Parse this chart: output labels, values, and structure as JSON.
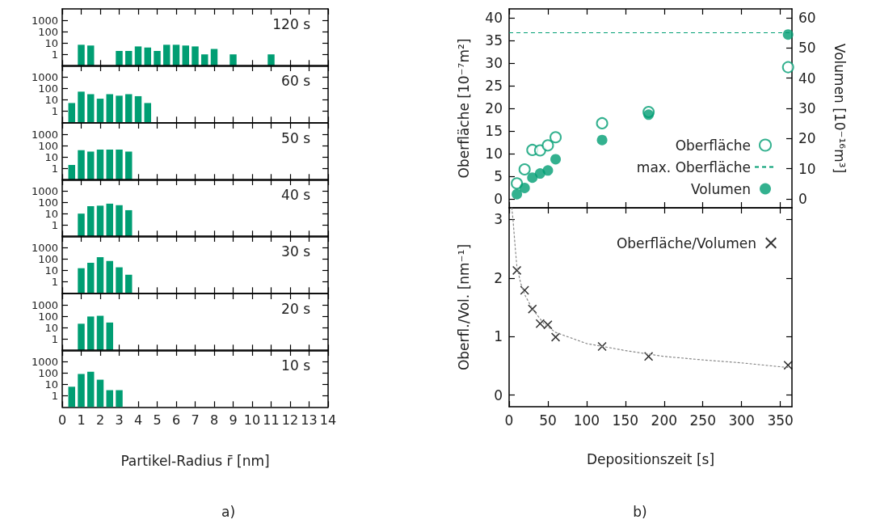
{
  "chart_data": [
    {
      "type": "bar",
      "x": [
        1,
        1.5,
        3,
        3.5,
        4,
        4.5,
        5,
        5.5,
        6,
        6.5,
        7,
        7.5,
        8,
        9,
        11
      ],
      "values": [
        7,
        6,
        2,
        2,
        5,
        4,
        2,
        7,
        7,
        6,
        5,
        1,
        3,
        1,
        1
      ],
      "color": "#009e73",
      "log": "y",
      "xlim": [
        0,
        14
      ],
      "xticks": [
        0,
        1,
        2,
        3,
        4,
        5,
        6,
        7,
        8,
        9,
        10,
        11,
        12,
        13,
        14
      ],
      "ylim": [
        0.1,
        10000
      ],
      "yticks": [
        1,
        10,
        100,
        1000
      ],
      "tick_labels": "y",
      "annotations": [
        "120 s"
      ]
    },
    {
      "type": "bar",
      "x": [
        0.5,
        1,
        1.5,
        2,
        2.5,
        3,
        3.5,
        4,
        4.5
      ],
      "values": [
        5,
        50,
        30,
        12,
        30,
        22,
        30,
        20,
        5
      ],
      "color": "#009e73",
      "log": "y",
      "xlim": [
        0,
        14
      ],
      "xticks": [
        0,
        1,
        2,
        3,
        4,
        5,
        6,
        7,
        8,
        9,
        10,
        11,
        12,
        13,
        14
      ],
      "ylim": [
        0.1,
        10000
      ],
      "yticks": [
        1,
        10,
        100,
        1000
      ],
      "tick_labels": "y",
      "annotations": [
        "60 s"
      ]
    },
    {
      "type": "bar",
      "x": [
        0.5,
        1,
        1.5,
        2,
        2.5,
        3,
        3.5
      ],
      "values": [
        2,
        40,
        30,
        45,
        45,
        45,
        30
      ],
      "color": "#009e73",
      "log": "y",
      "xlim": [
        0,
        14
      ],
      "xticks": [
        0,
        1,
        2,
        3,
        4,
        5,
        6,
        7,
        8,
        9,
        10,
        11,
        12,
        13,
        14
      ],
      "ylim": [
        0.1,
        10000
      ],
      "yticks": [
        1,
        10,
        100,
        1000
      ],
      "tick_labels": "y",
      "annotations": [
        "50 s"
      ]
    },
    {
      "type": "bar",
      "x": [
        1,
        1.5,
        2,
        2.5,
        3,
        3.5
      ],
      "values": [
        10,
        45,
        50,
        75,
        55,
        20
      ],
      "color": "#009e73",
      "log": "y",
      "xlim": [
        0,
        14
      ],
      "xticks": [
        0,
        1,
        2,
        3,
        4,
        5,
        6,
        7,
        8,
        9,
        10,
        11,
        12,
        13,
        14
      ],
      "ylim": [
        0.1,
        10000
      ],
      "yticks": [
        1,
        10,
        100,
        1000
      ],
      "tick_labels": "y",
      "annotations": [
        "40 s"
      ]
    },
    {
      "type": "bar",
      "x": [
        1,
        1.5,
        2,
        2.5,
        3,
        3.5
      ],
      "values": [
        15,
        45,
        140,
        65,
        18,
        4
      ],
      "color": "#009e73",
      "log": "y",
      "xlim": [
        0,
        14
      ],
      "xticks": [
        0,
        1,
        2,
        3,
        4,
        5,
        6,
        7,
        8,
        9,
        10,
        11,
        12,
        13,
        14
      ],
      "ylim": [
        0.1,
        10000
      ],
      "yticks": [
        1,
        10,
        100,
        1000
      ],
      "tick_labels": "y",
      "annotations": [
        "30 s"
      ]
    },
    {
      "type": "bar",
      "x": [
        1,
        1.5,
        2,
        2.5
      ],
      "values": [
        22,
        95,
        110,
        28
      ],
      "color": "#009e73",
      "log": "y",
      "xlim": [
        0,
        14
      ],
      "xticks": [
        0,
        1,
        2,
        3,
        4,
        5,
        6,
        7,
        8,
        9,
        10,
        11,
        12,
        13,
        14
      ],
      "ylim": [
        0.1,
        10000
      ],
      "yticks": [
        1,
        10,
        100,
        1000
      ],
      "tick_labels": "y",
      "annotations": [
        "20 s"
      ]
    },
    {
      "type": "bar",
      "x": [
        0.5,
        1,
        1.5,
        2,
        2.5,
        3
      ],
      "values": [
        6,
        80,
        125,
        25,
        3,
        3
      ],
      "color": "#009e73",
      "log": "y",
      "xlim": [
        0,
        14
      ],
      "xticks": [
        0,
        1,
        2,
        3,
        4,
        5,
        6,
        7,
        8,
        9,
        10,
        11,
        12,
        13,
        14
      ],
      "ylim": [
        0.1,
        10000
      ],
      "yticks": [
        1,
        10,
        100,
        1000
      ],
      "xlabel": "Partikel-Radius r̄ [nm]",
      "annotations": [
        "10 s",
        "a)"
      ]
    },
    {
      "type": "scatter",
      "ylabel": "Oberfläche [10⁻⁷m²]",
      "y2label": "Volumen [10⁻¹⁶m³]",
      "xlim": [
        0,
        365
      ],
      "xticks": [
        0,
        50,
        100,
        150,
        200,
        250,
        300,
        350
      ],
      "ylim": [
        -2,
        42
      ],
      "yticks": [
        0,
        5,
        10,
        15,
        20,
        25,
        30,
        35,
        40
      ],
      "y2lim": [
        -3,
        63
      ],
      "y2ticks": [
        0,
        10,
        20,
        30,
        40,
        50,
        60
      ],
      "tick_labels": "y",
      "legend": "bottom right",
      "x": [
        10,
        20,
        30,
        40,
        50,
        60,
        120,
        180,
        360
      ],
      "series": [
        {
          "name": "Oberfläche",
          "color": "#009e73",
          "marker": "circle",
          "values": [
            3.4,
            6.5,
            10.8,
            10.7,
            11.8,
            13.6,
            16.7,
            19.2,
            29.1
          ]
        },
        {
          "name": "Volumen",
          "color": "#009e73",
          "marker": "circle",
          "axis": "y2",
          "values": [
            1.5,
            3.6,
            7.0,
            8.4,
            9.4,
            13.1,
            19.5,
            27.9,
            54.5
          ]
        }
      ],
      "ref_lines": [
        {
          "axis": "y",
          "value": 36.8,
          "label": "max. Oberfläche",
          "color": "#009e73",
          "line_style": "dashed"
        }
      ]
    },
    {
      "type": "scatter",
      "ylabel": "Oberfl./Vol. [nm⁻¹]",
      "xlabel": "Depositionszeit [s]",
      "xlim": [
        0,
        365
      ],
      "xticks": [
        0,
        50,
        100,
        150,
        200,
        250,
        300,
        350
      ],
      "ylim": [
        -0.2,
        3.2
      ],
      "yticks": [
        0,
        1,
        2,
        3
      ],
      "legend": "top right",
      "x": [
        10,
        20,
        30,
        40,
        50,
        60,
        120,
        180,
        360
      ],
      "series": [
        {
          "name": "Oberfläche/Volumen",
          "color": "#000000",
          "marker": "cross",
          "values": [
            2.13,
            1.79,
            1.47,
            1.22,
            1.2,
            0.99,
            0.83,
            0.66,
            0.51
          ]
        },
        {
          "type": "line",
          "color": "#888888",
          "marker": "none",
          "line_style": "dotted",
          "x": [
            3.5,
            5,
            8,
            10,
            15,
            20,
            30,
            45,
            60,
            100,
            150,
            200,
            250,
            300,
            360
          ],
          "values": [
            3.2,
            3.0,
            2.5,
            2.2,
            1.91,
            1.72,
            1.47,
            1.22,
            1.07,
            0.88,
            0.76,
            0.66,
            0.6,
            0.55,
            0.47
          ]
        }
      ],
      "annotations": [
        "b)"
      ]
    }
  ]
}
